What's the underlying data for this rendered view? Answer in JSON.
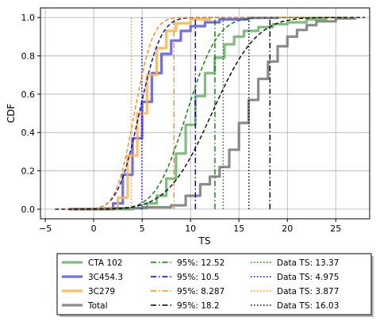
{
  "chart_data": {
    "type": "line",
    "xlabel": "TS",
    "ylabel": "CDF",
    "xlim": [
      -5.5,
      28.5
    ],
    "ylim": [
      -0.05,
      1.05
    ],
    "xticks": [
      -5,
      0,
      5,
      10,
      15,
      20,
      25
    ],
    "yticks": [
      0.0,
      0.2,
      0.4,
      0.6,
      0.8,
      1.0
    ],
    "xtick_labels": [
      "−5",
      "0",
      "5",
      "10",
      "15",
      "20",
      "25"
    ],
    "ytick_labels": [
      "0.0",
      "0.2",
      "0.4",
      "0.6",
      "0.8",
      "1.0"
    ],
    "grid": true,
    "legend_position": "bottom-outside",
    "series": [
      {
        "name": "CTA 102",
        "kind": "empirical-cdf",
        "color": "#66b366",
        "points": [
          [
            -2.5,
            0.0
          ],
          [
            4,
            0.005
          ],
          [
            5.5,
            0.03
          ],
          [
            6.5,
            0.07
          ],
          [
            7.5,
            0.16
          ],
          [
            8.5,
            0.29
          ],
          [
            9.5,
            0.44
          ],
          [
            10.5,
            0.59
          ],
          [
            11.5,
            0.71
          ],
          [
            12.5,
            0.79
          ],
          [
            13.5,
            0.86
          ],
          [
            14.5,
            0.9
          ],
          [
            15.5,
            0.93
          ],
          [
            17,
            0.95
          ],
          [
            18.5,
            0.965
          ],
          [
            20,
            0.975
          ],
          [
            22,
            0.99
          ],
          [
            24,
            1.0
          ]
        ]
      },
      {
        "name": "3C454.3",
        "kind": "empirical-cdf",
        "color": "#5555f0",
        "points": [
          [
            -2.5,
            0.0
          ],
          [
            1,
            0.005
          ],
          [
            2,
            0.03
          ],
          [
            3,
            0.18
          ],
          [
            4,
            0.37
          ],
          [
            5,
            0.56
          ],
          [
            6,
            0.71
          ],
          [
            7,
            0.81
          ],
          [
            8,
            0.88
          ],
          [
            9,
            0.93
          ],
          [
            10,
            0.955
          ],
          [
            11.5,
            0.975
          ],
          [
            13,
            0.99
          ],
          [
            16,
            0.998
          ],
          [
            19,
            1.0
          ]
        ]
      },
      {
        "name": "3C279",
        "kind": "empirical-cdf",
        "color": "#ffb347",
        "points": [
          [
            -2.5,
            0.0
          ],
          [
            1,
            0.005
          ],
          [
            2.5,
            0.06
          ],
          [
            3.5,
            0.28
          ],
          [
            4.5,
            0.5
          ],
          [
            5.5,
            0.7
          ],
          [
            6.5,
            0.84
          ],
          [
            7.5,
            0.93
          ],
          [
            8.5,
            0.97
          ],
          [
            10,
            0.99
          ],
          [
            12,
            1.0
          ]
        ]
      },
      {
        "name": "Total",
        "kind": "empirical-cdf",
        "color": "#777777",
        "points": [
          [
            -2.5,
            0.0
          ],
          [
            2,
            0.005
          ],
          [
            5,
            0.01
          ],
          [
            8,
            0.02
          ],
          [
            9.5,
            0.07
          ],
          [
            11,
            0.13
          ],
          [
            12,
            0.17
          ],
          [
            13,
            0.22
          ],
          [
            14,
            0.31
          ],
          [
            15,
            0.45
          ],
          [
            16,
            0.57
          ],
          [
            17,
            0.68
          ],
          [
            18,
            0.77
          ],
          [
            19,
            0.85
          ],
          [
            20,
            0.9
          ],
          [
            21,
            0.935
          ],
          [
            22,
            0.96
          ],
          [
            23,
            0.98
          ],
          [
            25,
            0.995
          ],
          [
            27,
            1.0
          ]
        ]
      },
      {
        "name": "CTA 102 fit",
        "kind": "fit",
        "color": "#008000",
        "dash": "dashed",
        "mu": 9.6,
        "sigma": 2.5,
        "x_range": [
          -2,
          26
        ]
      },
      {
        "name": "3C454.3 fit",
        "kind": "fit",
        "color": "#0000cc",
        "dash": "dashed",
        "mu": 4.7,
        "sigma": 1.75,
        "x_range": [
          -2,
          26
        ]
      },
      {
        "name": "3C279 fit",
        "kind": "fit",
        "color": "#ff8c00",
        "dash": "dashed",
        "mu": 4.2,
        "sigma": 1.5,
        "x_range": [
          -2,
          26
        ]
      },
      {
        "name": "Total fit",
        "kind": "fit",
        "color": "#000000",
        "dash": "dashed",
        "mu": 12.2,
        "sigma": 3.6,
        "x_range": [
          -4,
          28
        ]
      }
    ],
    "vlines": [
      {
        "label": "95%: 12.52",
        "x": 12.52,
        "color": "#008000",
        "style": "dashdot"
      },
      {
        "label": "95%: 10.5",
        "x": 10.5,
        "color": "#0000cc",
        "style": "dashdot"
      },
      {
        "label": "95%: 8.287",
        "x": 8.287,
        "color": "#ff8c00",
        "style": "dashdot"
      },
      {
        "label": "95%: 18.2",
        "x": 18.2,
        "color": "#000000",
        "style": "dashdot"
      },
      {
        "label": "Data TS: 13.37",
        "x": 13.37,
        "color": "#008000",
        "style": "dotted"
      },
      {
        "label": "Data TS: 4.975",
        "x": 4.975,
        "color": "#0000cc",
        "style": "dotted"
      },
      {
        "label": "Data TS: 3.877",
        "x": 3.877,
        "color": "#ff8c00",
        "style": "dotted"
      },
      {
        "label": "Data TS: 16.03",
        "x": 16.03,
        "color": "#000000",
        "style": "dotted"
      }
    ],
    "legend": {
      "columns": [
        [
          {
            "label": "CTA 102",
            "color": "#66b366",
            "style": "thick"
          },
          {
            "label": "3C454.3",
            "color": "#5555f0",
            "style": "thick"
          },
          {
            "label": "3C279",
            "color": "#ffb347",
            "style": "thick"
          },
          {
            "label": "Total",
            "color": "#777777",
            "style": "thick"
          }
        ],
        [
          {
            "label": "95%: 12.52",
            "color": "#008000",
            "style": "dashdot"
          },
          {
            "label": "95%: 10.5",
            "color": "#0000cc",
            "style": "dashdot"
          },
          {
            "label": "95%: 8.287",
            "color": "#ff8c00",
            "style": "dashdot"
          },
          {
            "label": "95%: 18.2",
            "color": "#000000",
            "style": "dashdot"
          }
        ],
        [
          {
            "label": "Data TS: 13.37",
            "color": "#008000",
            "style": "dotted"
          },
          {
            "label": "Data TS: 4.975",
            "color": "#0000cc",
            "style": "dotted"
          },
          {
            "label": "Data TS: 3.877",
            "color": "#ff8c00",
            "style": "dotted"
          },
          {
            "label": "Data TS: 16.03",
            "color": "#000000",
            "style": "dotted"
          }
        ]
      ]
    }
  }
}
